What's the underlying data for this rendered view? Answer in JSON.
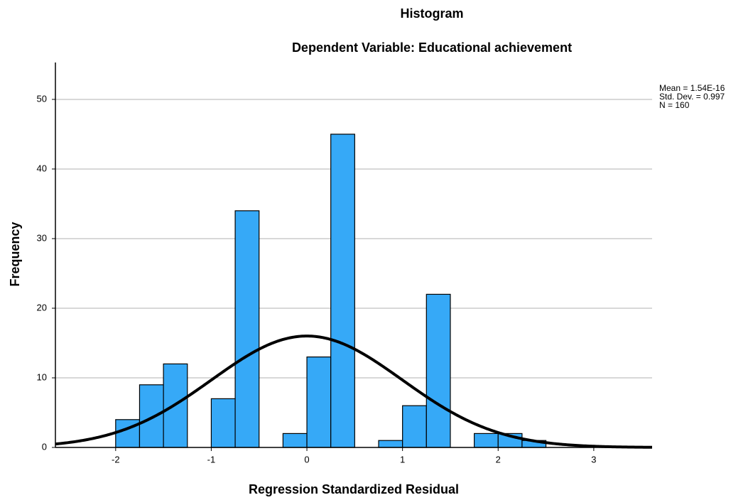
{
  "chart_data": {
    "type": "histogram",
    "title": "Histogram",
    "subtitle": "Dependent Variable: Educational achievement",
    "x_label": "Regression Standardized Residual",
    "y_label": "Frequency",
    "bins": [
      -2,
      -1.75,
      -1.5,
      -1.25,
      -1,
      -0.75,
      -0.5,
      -0.25,
      0,
      0.25,
      0.5,
      0.75,
      1,
      1.25,
      1.5,
      1.75,
      2,
      2.25,
      2.5
    ],
    "values": [
      4,
      9,
      12,
      0,
      7,
      34,
      0,
      2,
      13,
      45,
      0,
      1,
      6,
      22,
      0,
      2,
      2,
      1
    ],
    "color": "#36a9f7",
    "curve_color": "#000000",
    "stats": [
      {
        "value": 1.54e-16,
        "label": "Mean = 1.54E-16"
      },
      {
        "value": 0.997,
        "label": "Std. Dev. = 0.997"
      },
      {
        "value": 160,
        "label": "N = 160"
      }
    ],
    "xlim": [
      -2.63,
      3.61
    ],
    "ylim": [
      0,
      55.3
    ],
    "xticks": [
      -2,
      -1,
      0,
      1,
      2,
      3
    ],
    "yticks": [
      0,
      10,
      20,
      30,
      40,
      50
    ],
    "grid": true
  }
}
